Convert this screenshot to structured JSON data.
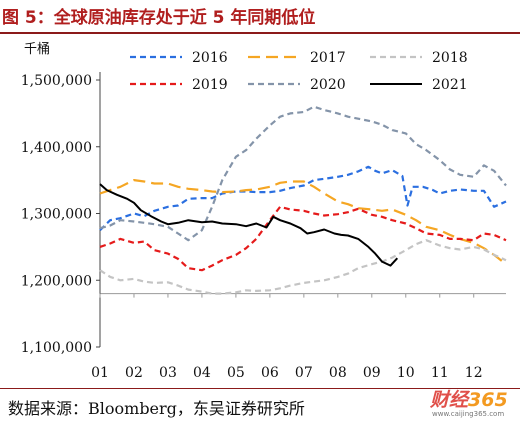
{
  "header": {
    "title": "图 5：全球原油库存处于近 5 年同期低位"
  },
  "footer": {
    "source": "数据来源：Bloomberg，东吴证券研究所"
  },
  "watermark": {
    "logo_a": "财经",
    "logo_b": "365",
    "url": "www.caijing365.com"
  },
  "colors": {
    "title": "#b01e1e",
    "rule": "#8b1a1a"
  },
  "chart_data": {
    "type": "line",
    "title": "",
    "xlabel": "",
    "ylabel": "千桶",
    "ylim": [
      1100000,
      1500000
    ],
    "xlim": [
      1,
      12.95
    ],
    "grid": false,
    "legend_position": "top",
    "x_ticks": [
      1,
      2,
      3,
      4,
      5,
      6,
      7,
      8,
      9,
      10,
      11,
      12
    ],
    "x_tick_labels": [
      "01",
      "02",
      "03",
      "04",
      "05",
      "06",
      "07",
      "08",
      "09",
      "10",
      "11",
      "12"
    ],
    "y_ticks": [
      1100000,
      1200000,
      1300000,
      1400000,
      1500000
    ],
    "y_tick_labels": [
      "1,100,000",
      "1,200,000",
      "1,300,000",
      "1,400,000",
      "1,500,000"
    ],
    "series": [
      {
        "name": "2016",
        "color": "#2b6fe0",
        "dash": "dash",
        "width": 2.2,
        "x": [
          1,
          1.3,
          1.6,
          2,
          2.3,
          2.6,
          3,
          3.3,
          3.6,
          4,
          4.3,
          4.6,
          5,
          5.3,
          5.6,
          6,
          6.3,
          6.6,
          7,
          7.3,
          7.6,
          8,
          8.3,
          8.6,
          8.9,
          9.1,
          9.3,
          9.6,
          9.9,
          10.05,
          10.2,
          10.5,
          10.8,
          11,
          11.3,
          11.6,
          12,
          12.3,
          12.6,
          12.95
        ],
        "y": [
          1275000,
          1290000,
          1293000,
          1300000,
          1296000,
          1304000,
          1310000,
          1312000,
          1322000,
          1323000,
          1323000,
          1330000,
          1333000,
          1333000,
          1332000,
          1332000,
          1334000,
          1338000,
          1342000,
          1350000,
          1352000,
          1355000,
          1358000,
          1363000,
          1370000,
          1364000,
          1360000,
          1365000,
          1356000,
          1312000,
          1340000,
          1340000,
          1335000,
          1330000,
          1334000,
          1336000,
          1334000,
          1334000,
          1310000,
          1318000
        ]
      },
      {
        "name": "2017",
        "color": "#f5a623",
        "dash": "longdash",
        "width": 2.2,
        "x": [
          1,
          1.3,
          1.6,
          2,
          2.3,
          2.6,
          3,
          3.3,
          3.6,
          4,
          4.3,
          4.6,
          5,
          5.3,
          5.6,
          6,
          6.3,
          6.6,
          7,
          7.3,
          7.6,
          8,
          8.3,
          8.6,
          9,
          9.3,
          9.6,
          10,
          10.3,
          10.6,
          11,
          11.3,
          11.6,
          12,
          12.3,
          12.6,
          12.95
        ],
        "y": [
          1330000,
          1335000,
          1340000,
          1350000,
          1348000,
          1345000,
          1345000,
          1340000,
          1337000,
          1335000,
          1333000,
          1332000,
          1333000,
          1335000,
          1336000,
          1340000,
          1346000,
          1348000,
          1348000,
          1340000,
          1330000,
          1318000,
          1314000,
          1308000,
          1306000,
          1304000,
          1306000,
          1298000,
          1290000,
          1280000,
          1275000,
          1268000,
          1262000,
          1256000,
          1248000,
          1238000,
          1224000
        ]
      },
      {
        "name": "2018",
        "color": "#c4c4c4",
        "dash": "dash",
        "width": 2.2,
        "x": [
          1,
          1.3,
          1.6,
          2,
          2.3,
          2.6,
          3,
          3.3,
          3.6,
          4,
          4.3,
          4.6,
          5,
          5.3,
          5.6,
          6,
          6.3,
          6.6,
          7,
          7.3,
          7.6,
          8,
          8.3,
          8.6,
          9,
          9.3,
          9.6,
          10,
          10.3,
          10.6,
          11,
          11.3,
          11.6,
          12,
          12.3,
          12.6,
          12.95
        ],
        "y": [
          1215000,
          1205000,
          1200000,
          1202000,
          1198000,
          1196000,
          1197000,
          1192000,
          1186000,
          1183000,
          1180000,
          1180000,
          1182000,
          1185000,
          1184000,
          1185000,
          1188000,
          1192000,
          1196000,
          1198000,
          1200000,
          1205000,
          1210000,
          1218000,
          1224000,
          1228000,
          1234000,
          1245000,
          1254000,
          1260000,
          1252000,
          1248000,
          1246000,
          1250000,
          1246000,
          1238000,
          1230000
        ]
      },
      {
        "name": "2019",
        "color": "#e51b1b",
        "dash": "dash",
        "width": 2.2,
        "x": [
          1,
          1.3,
          1.6,
          2,
          2.3,
          2.6,
          3,
          3.3,
          3.6,
          4,
          4.3,
          4.6,
          5,
          5.3,
          5.6,
          6,
          6.3,
          6.6,
          7,
          7.3,
          7.6,
          8,
          8.3,
          8.6,
          9,
          9.3,
          9.6,
          10,
          10.3,
          10.6,
          11,
          11.3,
          11.6,
          12,
          12.3,
          12.6,
          12.95
        ],
        "y": [
          1250000,
          1255000,
          1262000,
          1256000,
          1258000,
          1245000,
          1240000,
          1232000,
          1218000,
          1215000,
          1222000,
          1230000,
          1238000,
          1248000,
          1262000,
          1290000,
          1310000,
          1306000,
          1304000,
          1300000,
          1297000,
          1299000,
          1302000,
          1307000,
          1298000,
          1295000,
          1290000,
          1285000,
          1278000,
          1270000,
          1268000,
          1262000,
          1262000,
          1260000,
          1270000,
          1268000,
          1260000
        ]
      },
      {
        "name": "2020",
        "color": "#8494a9",
        "dash": "dash",
        "width": 2.2,
        "x": [
          1,
          1.3,
          1.6,
          2,
          2.3,
          2.6,
          3,
          3.3,
          3.6,
          4,
          4.3,
          4.6,
          5,
          5.3,
          5.6,
          6,
          6.3,
          6.6,
          7,
          7.3,
          7.6,
          8,
          8.3,
          8.6,
          9,
          9.3,
          9.6,
          10,
          10.3,
          10.6,
          11,
          11.3,
          11.6,
          12,
          12.3,
          12.6,
          12.95
        ],
        "y": [
          1278000,
          1282000,
          1290000,
          1288000,
          1286000,
          1284000,
          1280000,
          1270000,
          1260000,
          1275000,
          1310000,
          1350000,
          1385000,
          1395000,
          1412000,
          1432000,
          1445000,
          1450000,
          1452000,
          1460000,
          1455000,
          1450000,
          1445000,
          1442000,
          1438000,
          1433000,
          1425000,
          1420000,
          1404000,
          1395000,
          1380000,
          1366000,
          1358000,
          1355000,
          1372000,
          1364000,
          1342000
        ]
      },
      {
        "name": "2021",
        "color": "#000000",
        "dash": "solid",
        "width": 2.0,
        "x": [
          1,
          1.2,
          1.5,
          1.8,
          2,
          2.2,
          2.5,
          2.8,
          3,
          3.3,
          3.6,
          4,
          4.3,
          4.6,
          5,
          5.3,
          5.6,
          5.9,
          6.1,
          6.3,
          6.6,
          6.9,
          7.1,
          7.3,
          7.6,
          7.9,
          8.1,
          8.3,
          8.6,
          8.9,
          9.1,
          9.3,
          9.55,
          9.75
        ],
        "y": [
          1344000,
          1335000,
          1328000,
          1322000,
          1316000,
          1305000,
          1296000,
          1288000,
          1284000,
          1286000,
          1290000,
          1287000,
          1288000,
          1285000,
          1284000,
          1281000,
          1285000,
          1279000,
          1295000,
          1290000,
          1285000,
          1278000,
          1270000,
          1272000,
          1276000,
          1270000,
          1268000,
          1267000,
          1262000,
          1250000,
          1240000,
          1228000,
          1222000,
          1233000
        ]
      }
    ]
  }
}
